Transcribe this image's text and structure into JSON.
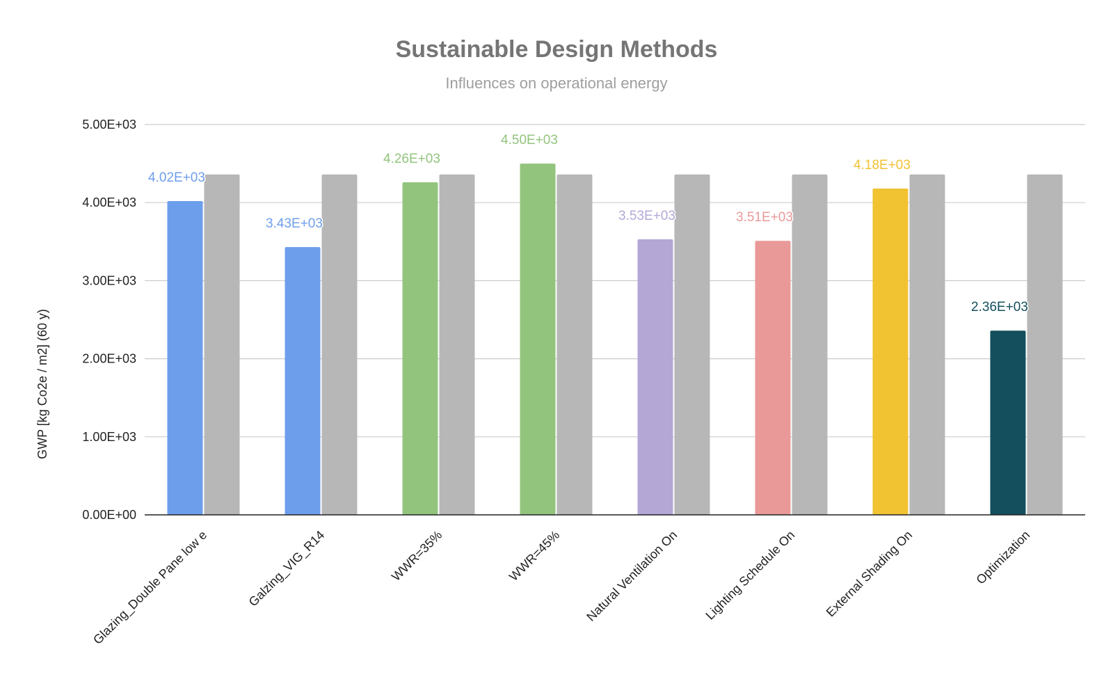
{
  "chart_data": {
    "type": "bar",
    "title": "Sustainable Design Methods",
    "subtitle": "Influences on operational energy",
    "ylabel": "GWP [kg Co2e / m2] (60 y)",
    "xlabel": "",
    "ylim": [
      0,
      5000
    ],
    "yticks": [
      0,
      1000,
      2000,
      3000,
      4000,
      5000
    ],
    "ytick_labels": [
      "0.00E+00",
      "1.00E+03",
      "2.00E+03",
      "3.00E+03",
      "4.00E+03",
      "5.00E+03"
    ],
    "grid": true,
    "legend": "none",
    "categories": [
      "Glazing_Double Pane low e",
      "Galzing_VIG_R14",
      "WWR=35%",
      "WWR=45%",
      "Natural Ventilation On",
      "Lighting Schedule On",
      "External Shading On",
      "Optimization"
    ],
    "series": [
      {
        "values": [
          4020,
          3430,
          4260,
          4500,
          3530,
          3510,
          4180,
          2360
        ],
        "data_labels": [
          "4.02E+03",
          "3.43E+03",
          "4.26E+03",
          "4.50E+03",
          "3.53E+03",
          "3.51E+03",
          "4.18E+03",
          "2.36E+03"
        ],
        "colors": [
          "#6d9eeb",
          "#6d9eeb",
          "#93c47d",
          "#93c47d",
          "#b4a7d6",
          "#ea9999",
          "#f1c232",
          "#134f5c"
        ]
      },
      {
        "values": [
          4360,
          4360,
          4360,
          4360,
          4360,
          4360,
          4360,
          4360
        ],
        "color": "#b7b7b7"
      }
    ]
  }
}
